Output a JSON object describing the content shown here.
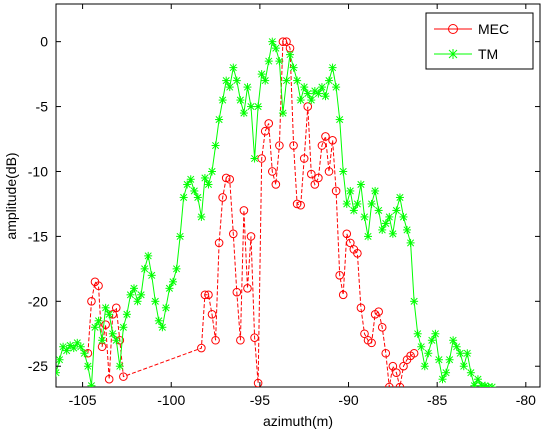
{
  "chart_data": {
    "type": "line",
    "xlabel": "azimuth(m)",
    "ylabel": "amplitude(dB)",
    "xlim": [
      -106.5,
      -79.2
    ],
    "ylim": [
      -26.6,
      2.9
    ],
    "xticks": [
      -105,
      -100,
      -95,
      -90,
      -85,
      -80
    ],
    "yticks": [
      0,
      -5,
      -10,
      -15,
      -20,
      -25
    ],
    "xtick_labels": [
      "-105",
      "-100",
      "-95",
      "-90",
      "-85",
      "-80"
    ],
    "ytick_labels": [
      "0",
      "-5",
      "-10",
      "-15",
      "-20",
      "-25"
    ],
    "grid": false,
    "legend_position": "top-right",
    "series": [
      {
        "name": "MEC",
        "color": "#ff0000",
        "marker": "circle",
        "x": [
          -104.7,
          -104.5,
          -104.3,
          -104.1,
          -103.9,
          -103.7,
          -103.5,
          -103.3,
          -103.1,
          -102.9,
          -102.7,
          -98.3,
          -98.1,
          -97.9,
          -97.7,
          -97.5,
          -97.3,
          -97.1,
          -96.9,
          -96.7,
          -96.5,
          -96.3,
          -96.1,
          -95.9,
          -95.7,
          -95.5,
          -95.3,
          -95.1,
          -94.9,
          -94.7,
          -94.5,
          -94.3,
          -94.1,
          -93.9,
          -93.7,
          -93.5,
          -93.3,
          -93.1,
          -92.9,
          -92.7,
          -92.5,
          -92.3,
          -92.1,
          -91.9,
          -91.7,
          -91.5,
          -91.3,
          -91.1,
          -90.9,
          -90.7,
          -90.5,
          -90.3,
          -90.1,
          -89.9,
          -89.7,
          -89.5,
          -89.3,
          -89.1,
          -88.9,
          -88.7,
          -88.5,
          -88.3,
          -88.1,
          -87.9,
          -87.7,
          -87.5,
          -87.3,
          -87.1,
          -86.9,
          -86.7,
          -86.5,
          -86.3
        ],
        "y": [
          -24.0,
          -20.0,
          -18.5,
          -18.8,
          -23.5,
          -21.8,
          -26.0,
          -21.0,
          -20.5,
          -23.0,
          -25.8,
          -23.6,
          -19.5,
          -19.5,
          -21.0,
          -23.0,
          -15.5,
          -12.0,
          -10.5,
          -10.6,
          -14.8,
          -19.3,
          -23.0,
          -13.0,
          -19.0,
          -15.0,
          -22.8,
          -26.3,
          -9.0,
          -6.9,
          -6.3,
          -10.0,
          -11.0,
          -8.0,
          0.0,
          0.0,
          -0.5,
          -8.0,
          -12.5,
          -12.6,
          -9.0,
          -5.0,
          -10.2,
          -11.0,
          -10.5,
          -8.0,
          -7.3,
          -10.0,
          -7.6,
          -11.5,
          -18.0,
          -19.5,
          -14.8,
          -15.5,
          -16.0,
          -16.3,
          -20.5,
          -22.5,
          -23.0,
          -23.2,
          -21.0,
          -20.8,
          -22.0,
          -24.0,
          -26.6,
          -25.0,
          -25.5,
          -26.6,
          -25.0,
          -24.5,
          -24.2,
          -24.0
        ]
      },
      {
        "name": "TM",
        "color": "#00ff00",
        "marker": "x",
        "x": [
          -106.5,
          -106.3,
          -106.1,
          -105.9,
          -105.7,
          -105.5,
          -105.3,
          -105.1,
          -104.9,
          -104.7,
          -104.5,
          -104.3,
          -104.1,
          -103.9,
          -103.7,
          -103.5,
          -103.3,
          -103.1,
          -102.9,
          -102.7,
          -102.5,
          -102.3,
          -102.1,
          -101.9,
          -101.7,
          -101.5,
          -101.3,
          -101.1,
          -100.9,
          -100.7,
          -100.5,
          -100.3,
          -100.1,
          -99.9,
          -99.7,
          -99.5,
          -99.3,
          -99.1,
          -98.9,
          -98.7,
          -98.5,
          -98.3,
          -98.1,
          -97.9,
          -97.7,
          -97.5,
          -97.3,
          -97.1,
          -96.9,
          -96.7,
          -96.5,
          -96.3,
          -96.1,
          -95.9,
          -95.7,
          -95.5,
          -95.3,
          -95.1,
          -94.9,
          -94.7,
          -94.5,
          -94.3,
          -94.1,
          -93.9,
          -93.7,
          -93.5,
          -93.3,
          -93.1,
          -92.9,
          -92.7,
          -92.5,
          -92.3,
          -92.1,
          -91.9,
          -91.7,
          -91.5,
          -91.3,
          -91.1,
          -90.9,
          -90.7,
          -90.5,
          -90.3,
          -90.1,
          -89.9,
          -89.7,
          -89.5,
          -89.3,
          -89.1,
          -88.9,
          -88.7,
          -88.5,
          -88.3,
          -88.1,
          -87.9,
          -87.7,
          -87.5,
          -87.3,
          -87.1,
          -86.9,
          -86.7,
          -86.5,
          -86.3,
          -86.1,
          -85.9,
          -85.7,
          -85.5,
          -85.3,
          -85.1,
          -84.9,
          -84.7,
          -84.5,
          -84.3,
          -84.1,
          -83.9,
          -83.7,
          -83.5,
          -83.3,
          -83.1,
          -82.9,
          -82.7,
          -82.5,
          -82.3,
          -82.1,
          -81.9
        ],
        "y": [
          -25.5,
          -24.5,
          -23.5,
          -23.8,
          -23.4,
          -23.6,
          -23.2,
          -23.5,
          -24.0,
          -25.0,
          -26.5,
          -22.0,
          -21.5,
          -23.0,
          -20.5,
          -21.0,
          -22.5,
          -23.0,
          -25.0,
          -22.0,
          -21.0,
          -19.5,
          -19.0,
          -20.0,
          -19.5,
          -17.5,
          -16.5,
          -18.0,
          -20.0,
          -21.5,
          -22.0,
          -20.5,
          -19.0,
          -18.5,
          -17.5,
          -15.0,
          -12.0,
          -11.0,
          -10.6,
          -11.5,
          -12.0,
          -13.5,
          -10.5,
          -11.0,
          -10.0,
          -8.0,
          -6.0,
          -4.5,
          -3.0,
          -3.5,
          -2.0,
          -3.0,
          -4.5,
          -5.5,
          -3.5,
          -5.0,
          -9.0,
          -5.0,
          -2.5,
          -3.0,
          -1.5,
          0.0,
          -0.5,
          -1.5,
          -5.5,
          -3.0,
          -1.0,
          -2.0,
          -3.0,
          -4.5,
          -3.5,
          -4.0,
          -4.5,
          -3.8,
          -4.0,
          -3.5,
          -4.2,
          -3.0,
          -2.0,
          -3.5,
          -6.0,
          -10.0,
          -12.5,
          -11.5,
          -13.0,
          -12.5,
          -11.0,
          -13.5,
          -15.0,
          -12.5,
          -11.5,
          -13.0,
          -14.5,
          -14.0,
          -13.5,
          -14.8,
          -13.0,
          -12.0,
          -13.5,
          -14.5,
          -15.5,
          -20.0,
          -22.5,
          -23.5,
          -25.0,
          -24.0,
          -23.0,
          -22.5,
          -24.5,
          -26.0,
          -25.5,
          -24.5,
          -23.0,
          -23.5,
          -24.0,
          -25.0,
          -24.0,
          -25.5,
          -26.5,
          -26.0,
          -26.5,
          -26.5,
          -26.6,
          -26.6
        ]
      }
    ]
  }
}
